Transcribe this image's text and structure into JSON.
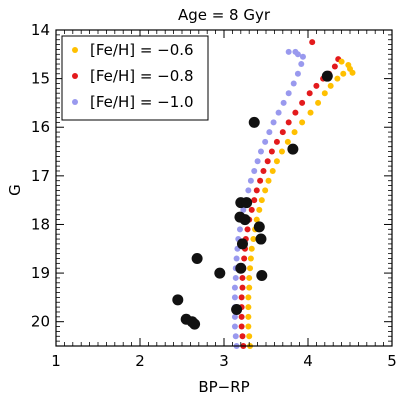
{
  "chart_data": {
    "type": "scatter",
    "title": "Age = 8 Gyr",
    "xlabel": "BP−RP",
    "ylabel": "G",
    "xlim": [
      1,
      5
    ],
    "ylim": [
      20.5,
      14
    ],
    "y_inverted": true,
    "grid": false,
    "legend_position": "top-left",
    "x_ticks": [
      "1",
      "2",
      "3",
      "4",
      "5"
    ],
    "y_ticks": [
      "14",
      "15",
      "16",
      "17",
      "18",
      "19",
      "20"
    ],
    "series": [
      {
        "name": "[Fe/H] = −0.6",
        "color": "#ffc000",
        "points": [
          [
            3.31,
            20.5
          ],
          [
            3.3,
            20.3
          ],
          [
            3.29,
            20.1
          ],
          [
            3.29,
            19.9
          ],
          [
            3.29,
            19.7
          ],
          [
            3.29,
            19.5
          ],
          [
            3.3,
            19.3
          ],
          [
            3.3,
            19.1
          ],
          [
            3.31,
            18.9
          ],
          [
            3.32,
            18.7
          ],
          [
            3.33,
            18.5
          ],
          [
            3.35,
            18.3
          ],
          [
            3.37,
            18.1
          ],
          [
            3.39,
            17.9
          ],
          [
            3.42,
            17.7
          ],
          [
            3.45,
            17.5
          ],
          [
            3.49,
            17.3
          ],
          [
            3.53,
            17.1
          ],
          [
            3.58,
            16.9
          ],
          [
            3.63,
            16.7
          ],
          [
            3.69,
            16.5
          ],
          [
            3.76,
            16.3
          ],
          [
            3.84,
            16.1
          ],
          [
            3.93,
            15.9
          ],
          [
            4.03,
            15.7
          ],
          [
            4.12,
            15.5
          ],
          [
            4.2,
            15.3
          ],
          [
            4.27,
            15.15
          ],
          [
            4.35,
            15.0
          ],
          [
            4.42,
            14.9
          ],
          [
            4.5,
            14.8
          ],
          [
            4.53,
            14.88
          ],
          [
            4.48,
            14.72
          ],
          [
            4.4,
            14.65
          ]
        ]
      },
      {
        "name": "[Fe/H] = −0.8",
        "color": "#e31a1c",
        "points": [
          [
            3.23,
            20.5
          ],
          [
            3.22,
            20.3
          ],
          [
            3.21,
            20.1
          ],
          [
            3.21,
            19.9
          ],
          [
            3.21,
            19.7
          ],
          [
            3.21,
            19.5
          ],
          [
            3.22,
            19.3
          ],
          [
            3.22,
            19.1
          ],
          [
            3.23,
            18.9
          ],
          [
            3.24,
            18.7
          ],
          [
            3.25,
            18.5
          ],
          [
            3.26,
            18.3
          ],
          [
            3.28,
            18.1
          ],
          [
            3.3,
            17.9
          ],
          [
            3.33,
            17.7
          ],
          [
            3.36,
            17.5
          ],
          [
            3.39,
            17.3
          ],
          [
            3.43,
            17.1
          ],
          [
            3.47,
            16.9
          ],
          [
            3.52,
            16.7
          ],
          [
            3.57,
            16.5
          ],
          [
            3.63,
            16.3
          ],
          [
            3.7,
            16.1
          ],
          [
            3.77,
            15.9
          ],
          [
            3.85,
            15.7
          ],
          [
            3.93,
            15.5
          ],
          [
            4.02,
            15.3
          ],
          [
            4.1,
            15.15
          ],
          [
            4.18,
            15.0
          ],
          [
            4.25,
            14.9
          ],
          [
            4.32,
            14.75
          ],
          [
            4.36,
            14.6
          ],
          [
            4.05,
            14.25
          ]
        ]
      },
      {
        "name": "[Fe/H] = −1.0",
        "color": "#9999ee",
        "points": [
          [
            3.15,
            20.5
          ],
          [
            3.14,
            20.3
          ],
          [
            3.13,
            20.1
          ],
          [
            3.13,
            19.9
          ],
          [
            3.13,
            19.7
          ],
          [
            3.13,
            19.5
          ],
          [
            3.13,
            19.3
          ],
          [
            3.14,
            19.1
          ],
          [
            3.14,
            18.9
          ],
          [
            3.15,
            18.7
          ],
          [
            3.16,
            18.5
          ],
          [
            3.17,
            18.3
          ],
          [
            3.19,
            18.1
          ],
          [
            3.21,
            17.9
          ],
          [
            3.23,
            17.7
          ],
          [
            3.26,
            17.5
          ],
          [
            3.29,
            17.3
          ],
          [
            3.32,
            17.1
          ],
          [
            3.36,
            16.9
          ],
          [
            3.4,
            16.7
          ],
          [
            3.44,
            16.5
          ],
          [
            3.49,
            16.3
          ],
          [
            3.54,
            16.1
          ],
          [
            3.59,
            15.9
          ],
          [
            3.65,
            15.7
          ],
          [
            3.71,
            15.5
          ],
          [
            3.77,
            15.3
          ],
          [
            3.83,
            15.1
          ],
          [
            3.88,
            14.9
          ],
          [
            3.92,
            14.7
          ],
          [
            3.94,
            14.55
          ],
          [
            3.85,
            14.45
          ],
          [
            3.88,
            14.5
          ],
          [
            3.77,
            14.45
          ]
        ]
      }
    ],
    "observed_points": [
      [
        2.45,
        19.55
      ],
      [
        2.55,
        19.95
      ],
      [
        2.65,
        20.05
      ],
      [
        2.62,
        20.0
      ],
      [
        2.68,
        18.7
      ],
      [
        2.95,
        19.0
      ],
      [
        3.15,
        19.75
      ],
      [
        3.2,
        18.9
      ],
      [
        3.22,
        18.4
      ],
      [
        3.45,
        19.05
      ],
      [
        3.44,
        18.3
      ],
      [
        3.42,
        18.05
      ],
      [
        3.19,
        17.85
      ],
      [
        3.25,
        17.9
      ],
      [
        3.2,
        17.55
      ],
      [
        3.27,
        17.55
      ],
      [
        3.36,
        15.9
      ],
      [
        3.82,
        16.45
      ],
      [
        4.23,
        14.95
      ]
    ]
  }
}
